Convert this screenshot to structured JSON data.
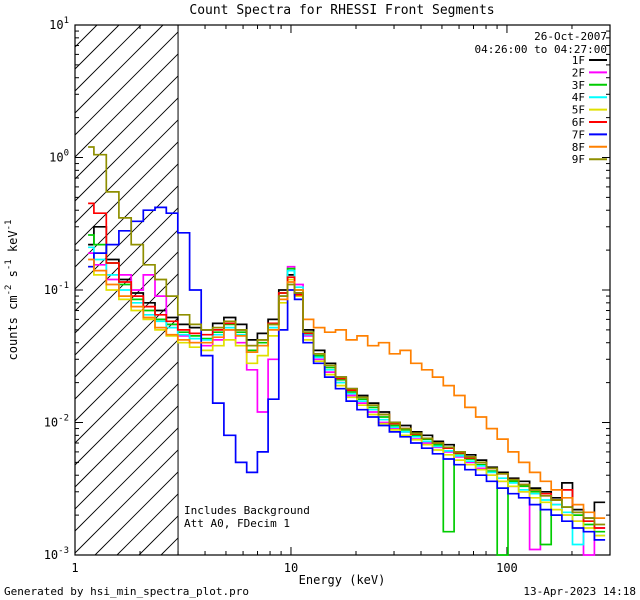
{
  "title": "Count Spectra for RHESSI Front Segments",
  "footer": {
    "left": "Generated by hsi_min_spectra_plot.pro",
    "right": "13-Apr-2023 14:18"
  },
  "chart_data": {
    "type": "line",
    "mode": "histogram-steps",
    "title": "Count Spectra for RHESSI Front Segments",
    "xlabel": "Energy (keV)",
    "ylabel": "counts cm^-2 s^-1 keV^-1",
    "xscale": "log",
    "yscale": "log",
    "xlim": [
      1,
      300
    ],
    "ylim": [
      0.001,
      10
    ],
    "x_ticks": [
      1,
      10,
      100
    ],
    "y_ticks": [
      0.001,
      0.01,
      0.1,
      1,
      10
    ],
    "grid": false,
    "legend_position": "top-right-inside",
    "legend_header": [
      "26-Oct-2007",
      "04:26:00 to 04:27:00"
    ],
    "annotations": [
      "Includes Background",
      "Att A0, FDecim 1"
    ],
    "hatch_region_kev": [
      1,
      3
    ],
    "axis_color": "#000000",
    "energies_kev": [
      1.15,
      1.3,
      1.5,
      1.7,
      1.95,
      2.2,
      2.5,
      2.8,
      3.2,
      3.6,
      4.1,
      4.6,
      5.2,
      5.9,
      6.6,
      7.4,
      8.3,
      9.3,
      10.0,
      10.8,
      12.0,
      13.5,
      15.2,
      17.0,
      19.1,
      21.4,
      24.0,
      27.0,
      30.2,
      33.9,
      38.0,
      42.7,
      47.9,
      53.7,
      60.3,
      67.6,
      75.9,
      85.1,
      95.5,
      107,
      120,
      135,
      151,
      170,
      190,
      213,
      240,
      269
    ],
    "series": [
      {
        "name": "1F",
        "color": "#000000",
        "values": [
          0.22,
          0.3,
          0.17,
          0.12,
          0.095,
          0.08,
          0.07,
          0.062,
          0.055,
          0.052,
          0.05,
          0.056,
          0.062,
          0.055,
          0.042,
          0.047,
          0.06,
          0.1,
          0.13,
          0.095,
          0.05,
          0.035,
          0.028,
          0.022,
          0.018,
          0.016,
          0.014,
          0.012,
          0.01,
          0.0095,
          0.0085,
          0.008,
          0.0072,
          0.0068,
          0.006,
          0.0057,
          0.0052,
          0.0046,
          0.0042,
          0.0038,
          0.0036,
          0.0032,
          0.003,
          0.0027,
          0.0035,
          0.0022,
          0.0019,
          0.0025
        ]
      },
      {
        "name": "2F",
        "color": "#FF00FF",
        "values": [
          0.19,
          0.155,
          0.12,
          0.13,
          0.1,
          0.13,
          0.09,
          0.055,
          0.045,
          0.04,
          0.038,
          0.042,
          0.05,
          0.04,
          0.025,
          0.012,
          0.03,
          0.09,
          0.15,
          0.11,
          0.045,
          0.03,
          0.024,
          0.02,
          0.016,
          0.014,
          0.012,
          0.01,
          0.009,
          0.0085,
          0.0075,
          0.007,
          0.0065,
          0.006,
          0.0055,
          0.005,
          0.0045,
          0.004,
          0.0036,
          0.0033,
          0.003,
          0.0011,
          0.0028,
          0.0024,
          0.002,
          0.0018,
          0.001,
          0.0016
        ]
      },
      {
        "name": "3F",
        "color": "#00CC00",
        "values": [
          0.26,
          0.22,
          0.16,
          0.11,
          0.085,
          0.07,
          0.06,
          0.055,
          0.048,
          0.045,
          0.043,
          0.048,
          0.055,
          0.048,
          0.035,
          0.04,
          0.055,
          0.095,
          0.145,
          0.1,
          0.048,
          0.032,
          0.026,
          0.021,
          0.017,
          0.015,
          0.013,
          0.011,
          0.0095,
          0.0088,
          0.008,
          0.0075,
          0.0068,
          0.0015,
          0.0058,
          0.0053,
          0.0048,
          0.0043,
          0.001,
          0.0036,
          0.0033,
          0.003,
          0.0012,
          0.0026,
          0.0023,
          0.002,
          0.0017,
          0.0015
        ]
      },
      {
        "name": "4F",
        "color": "#00FFFF",
        "values": [
          0.21,
          0.17,
          0.13,
          0.1,
          0.08,
          0.065,
          0.058,
          0.052,
          0.046,
          0.043,
          0.042,
          0.046,
          0.052,
          0.046,
          0.034,
          0.038,
          0.052,
          0.09,
          0.14,
          0.105,
          0.046,
          0.031,
          0.025,
          0.02,
          0.0165,
          0.0145,
          0.0125,
          0.0105,
          0.0092,
          0.0085,
          0.0078,
          0.0072,
          0.0066,
          0.0061,
          0.0056,
          0.0051,
          0.0047,
          0.0042,
          0.0038,
          0.0035,
          0.0031,
          0.0029,
          0.0026,
          0.0024,
          0.0021,
          0.0012,
          0.0018,
          0.0014
        ]
      },
      {
        "name": "5F",
        "color": "#E0E000",
        "values": [
          0.15,
          0.13,
          0.1,
          0.085,
          0.07,
          0.06,
          0.05,
          0.045,
          0.04,
          0.037,
          0.035,
          0.038,
          0.042,
          0.038,
          0.028,
          0.032,
          0.045,
          0.08,
          0.12,
          0.09,
          0.042,
          0.029,
          0.023,
          0.019,
          0.0155,
          0.0135,
          0.0115,
          0.0098,
          0.0088,
          0.008,
          0.0074,
          0.0068,
          0.0062,
          0.0057,
          0.0052,
          0.0048,
          0.0044,
          0.004,
          0.0036,
          0.0033,
          0.003,
          0.0027,
          0.0025,
          0.0022,
          0.002,
          0.0018,
          0.0016,
          0.0014
        ]
      },
      {
        "name": "6F",
        "color": "#FF0000",
        "values": [
          0.45,
          0.38,
          0.16,
          0.115,
          0.09,
          0.075,
          0.065,
          0.058,
          0.05,
          0.047,
          0.046,
          0.05,
          0.056,
          0.05,
          0.038,
          0.042,
          0.056,
          0.095,
          0.125,
          0.092,
          0.047,
          0.033,
          0.027,
          0.0215,
          0.0175,
          0.0155,
          0.0135,
          0.0115,
          0.0098,
          0.009,
          0.0082,
          0.0076,
          0.007,
          0.0064,
          0.0059,
          0.0054,
          0.005,
          0.0045,
          0.0041,
          0.0037,
          0.0034,
          0.0031,
          0.0029,
          0.0026,
          0.0031,
          0.0021,
          0.0018,
          0.0016
        ]
      },
      {
        "name": "7F",
        "color": "#0000FF",
        "values": [
          0.15,
          0.19,
          0.22,
          0.28,
          0.33,
          0.4,
          0.42,
          0.38,
          0.27,
          0.1,
          0.032,
          0.014,
          0.008,
          0.005,
          0.0042,
          0.006,
          0.015,
          0.05,
          0.1,
          0.085,
          0.04,
          0.028,
          0.022,
          0.018,
          0.0145,
          0.0125,
          0.011,
          0.0095,
          0.0085,
          0.0078,
          0.007,
          0.0064,
          0.0058,
          0.0053,
          0.0048,
          0.0044,
          0.004,
          0.0036,
          0.0032,
          0.0029,
          0.0027,
          0.0024,
          0.0022,
          0.002,
          0.0018,
          0.0016,
          0.0015,
          0.0013
        ]
      },
      {
        "name": "8F",
        "color": "#FF8000",
        "values": [
          0.17,
          0.14,
          0.11,
          0.09,
          0.075,
          0.062,
          0.052,
          0.046,
          0.042,
          0.04,
          0.04,
          0.044,
          0.05,
          0.045,
          0.034,
          0.038,
          0.05,
          0.085,
          0.115,
          0.1,
          0.06,
          0.052,
          0.048,
          0.05,
          0.042,
          0.045,
          0.038,
          0.04,
          0.033,
          0.035,
          0.028,
          0.025,
          0.022,
          0.019,
          0.016,
          0.013,
          0.011,
          0.009,
          0.0075,
          0.006,
          0.005,
          0.0042,
          0.0036,
          0.0031,
          0.0027,
          0.0024,
          0.0021,
          0.0019
        ]
      },
      {
        "name": "9F",
        "color": "#8F8F00",
        "values": [
          1.2,
          1.05,
          0.55,
          0.35,
          0.22,
          0.155,
          0.12,
          0.09,
          0.065,
          0.055,
          0.05,
          0.052,
          0.058,
          0.05,
          0.038,
          0.042,
          0.055,
          0.09,
          0.11,
          0.095,
          0.048,
          0.033,
          0.027,
          0.022,
          0.018,
          0.0155,
          0.0135,
          0.0115,
          0.01,
          0.009,
          0.0083,
          0.0076,
          0.007,
          0.0065,
          0.006,
          0.0055,
          0.005,
          0.0045,
          0.0041,
          0.0037,
          0.0034,
          0.0031,
          0.0028,
          0.0026,
          0.0023,
          0.0021,
          0.0019,
          0.0017
        ]
      }
    ]
  }
}
